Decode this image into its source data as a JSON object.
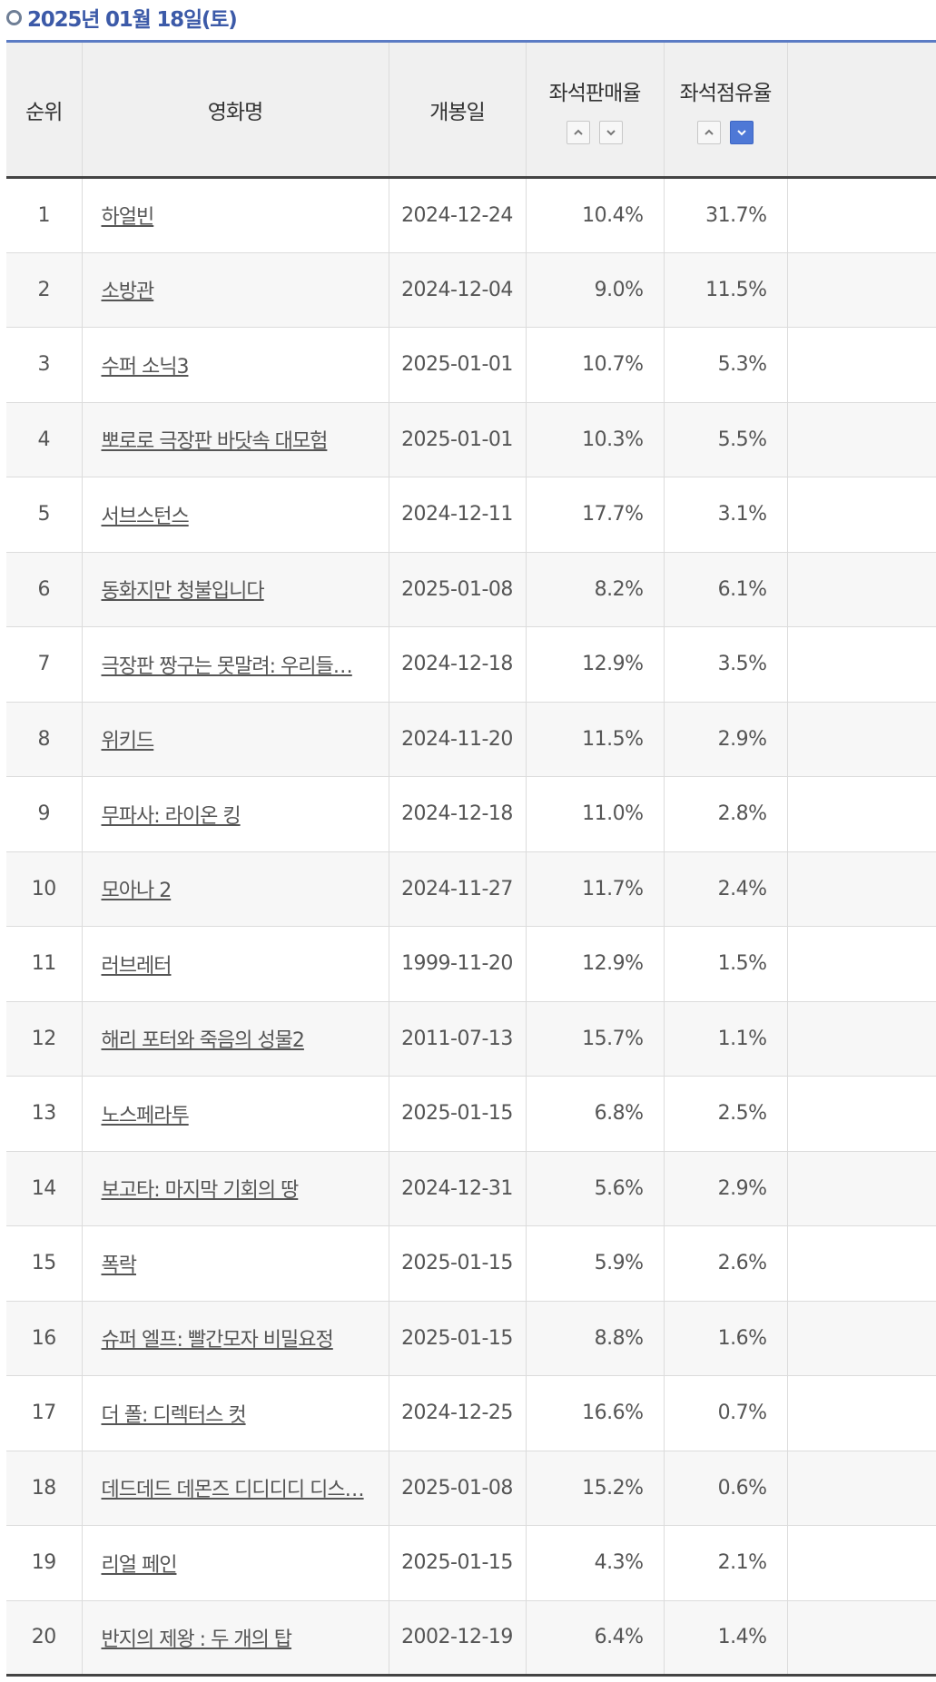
{
  "header": {
    "date": "2025년 01월 18일(토)"
  },
  "columns": {
    "rank": "순위",
    "title": "영화명",
    "release": "개봉일",
    "sales_rate": "좌석판매율",
    "share_rate": "좌석점유율"
  },
  "rows": [
    {
      "rank": "1",
      "title": "하얼빈",
      "release": "2024-12-24",
      "sales": "10.4%",
      "share": "31.7%"
    },
    {
      "rank": "2",
      "title": "소방관",
      "release": "2024-12-04",
      "sales": "9.0%",
      "share": "11.5%"
    },
    {
      "rank": "3",
      "title": "수퍼 소닉3",
      "release": "2025-01-01",
      "sales": "10.7%",
      "share": "5.3%"
    },
    {
      "rank": "4",
      "title": "뽀로로 극장판 바닷속 대모험",
      "release": "2025-01-01",
      "sales": "10.3%",
      "share": "5.5%"
    },
    {
      "rank": "5",
      "title": "서브스턴스",
      "release": "2024-12-11",
      "sales": "17.7%",
      "share": "3.1%"
    },
    {
      "rank": "6",
      "title": "동화지만 청불입니다",
      "release": "2025-01-08",
      "sales": "8.2%",
      "share": "6.1%"
    },
    {
      "rank": "7",
      "title": "극장판 짱구는 못말려: 우리들…",
      "release": "2024-12-18",
      "sales": "12.9%",
      "share": "3.5%"
    },
    {
      "rank": "8",
      "title": "위키드",
      "release": "2024-11-20",
      "sales": "11.5%",
      "share": "2.9%"
    },
    {
      "rank": "9",
      "title": "무파사: 라이온 킹",
      "release": "2024-12-18",
      "sales": "11.0%",
      "share": "2.8%"
    },
    {
      "rank": "10",
      "title": "모아나 2",
      "release": "2024-11-27",
      "sales": "11.7%",
      "share": "2.4%"
    },
    {
      "rank": "11",
      "title": "러브레터",
      "release": "1999-11-20",
      "sales": "12.9%",
      "share": "1.5%"
    },
    {
      "rank": "12",
      "title": "해리 포터와 죽음의 성물2",
      "release": "2011-07-13",
      "sales": "15.7%",
      "share": "1.1%"
    },
    {
      "rank": "13",
      "title": "노스페라투",
      "release": "2025-01-15",
      "sales": "6.8%",
      "share": "2.5%"
    },
    {
      "rank": "14",
      "title": "보고타: 마지막 기회의 땅",
      "release": "2024-12-31",
      "sales": "5.6%",
      "share": "2.9%"
    },
    {
      "rank": "15",
      "title": "폭락",
      "release": "2025-01-15",
      "sales": "5.9%",
      "share": "2.6%"
    },
    {
      "rank": "16",
      "title": "슈퍼 엘프: 빨간모자 비밀요정",
      "release": "2025-01-15",
      "sales": "8.8%",
      "share": "1.6%"
    },
    {
      "rank": "17",
      "title": "더 폴: 디렉터스 컷",
      "release": "2024-12-25",
      "sales": "16.6%",
      "share": "0.7%"
    },
    {
      "rank": "18",
      "title": "데드데드 데몬즈 디디디디 디스…",
      "release": "2025-01-08",
      "sales": "15.2%",
      "share": "0.6%"
    },
    {
      "rank": "19",
      "title": "리얼 페인",
      "release": "2025-01-15",
      "sales": "4.3%",
      "share": "2.1%"
    },
    {
      "rank": "20",
      "title": "반지의 제왕 : 두 개의 탑",
      "release": "2002-12-19",
      "sales": "6.4%",
      "share": "1.4%"
    }
  ]
}
